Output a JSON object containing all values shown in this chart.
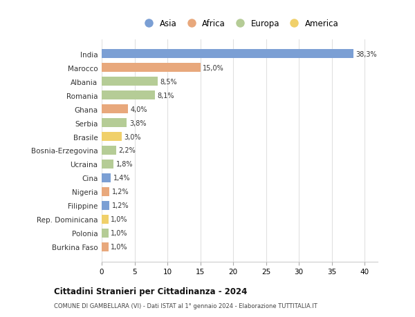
{
  "countries": [
    "India",
    "Marocco",
    "Albania",
    "Romania",
    "Ghana",
    "Serbia",
    "Brasile",
    "Bosnia-Erzegovina",
    "Ucraina",
    "Cina",
    "Nigeria",
    "Filippine",
    "Rep. Dominicana",
    "Polonia",
    "Burkina Faso"
  ],
  "values": [
    38.3,
    15.0,
    8.5,
    8.1,
    4.0,
    3.8,
    3.0,
    2.2,
    1.8,
    1.4,
    1.2,
    1.2,
    1.0,
    1.0,
    1.0
  ],
  "labels": [
    "38,3%",
    "15,0%",
    "8,5%",
    "8,1%",
    "4,0%",
    "3,8%",
    "3,0%",
    "2,2%",
    "1,8%",
    "1,4%",
    "1,2%",
    "1,2%",
    "1,0%",
    "1,0%",
    "1,0%"
  ],
  "continents": [
    "Asia",
    "Africa",
    "Europa",
    "Europa",
    "Africa",
    "Europa",
    "America",
    "Europa",
    "Europa",
    "Asia",
    "Africa",
    "Asia",
    "America",
    "Europa",
    "Africa"
  ],
  "colors": {
    "Asia": "#7b9fd4",
    "Africa": "#e8a87c",
    "Europa": "#b5cc96",
    "America": "#f0d06a"
  },
  "legend_order": [
    "Asia",
    "Africa",
    "Europa",
    "America"
  ],
  "title": "Cittadini Stranieri per Cittadinanza - 2024",
  "subtitle": "COMUNE DI GAMBELLARA (VI) - Dati ISTAT al 1° gennaio 2024 - Elaborazione TUTTITALIA.IT",
  "xlim": [
    0,
    42
  ],
  "xticks": [
    0,
    5,
    10,
    15,
    20,
    25,
    30,
    35,
    40
  ],
  "background_color": "#ffffff",
  "grid_color": "#e0e0e0"
}
